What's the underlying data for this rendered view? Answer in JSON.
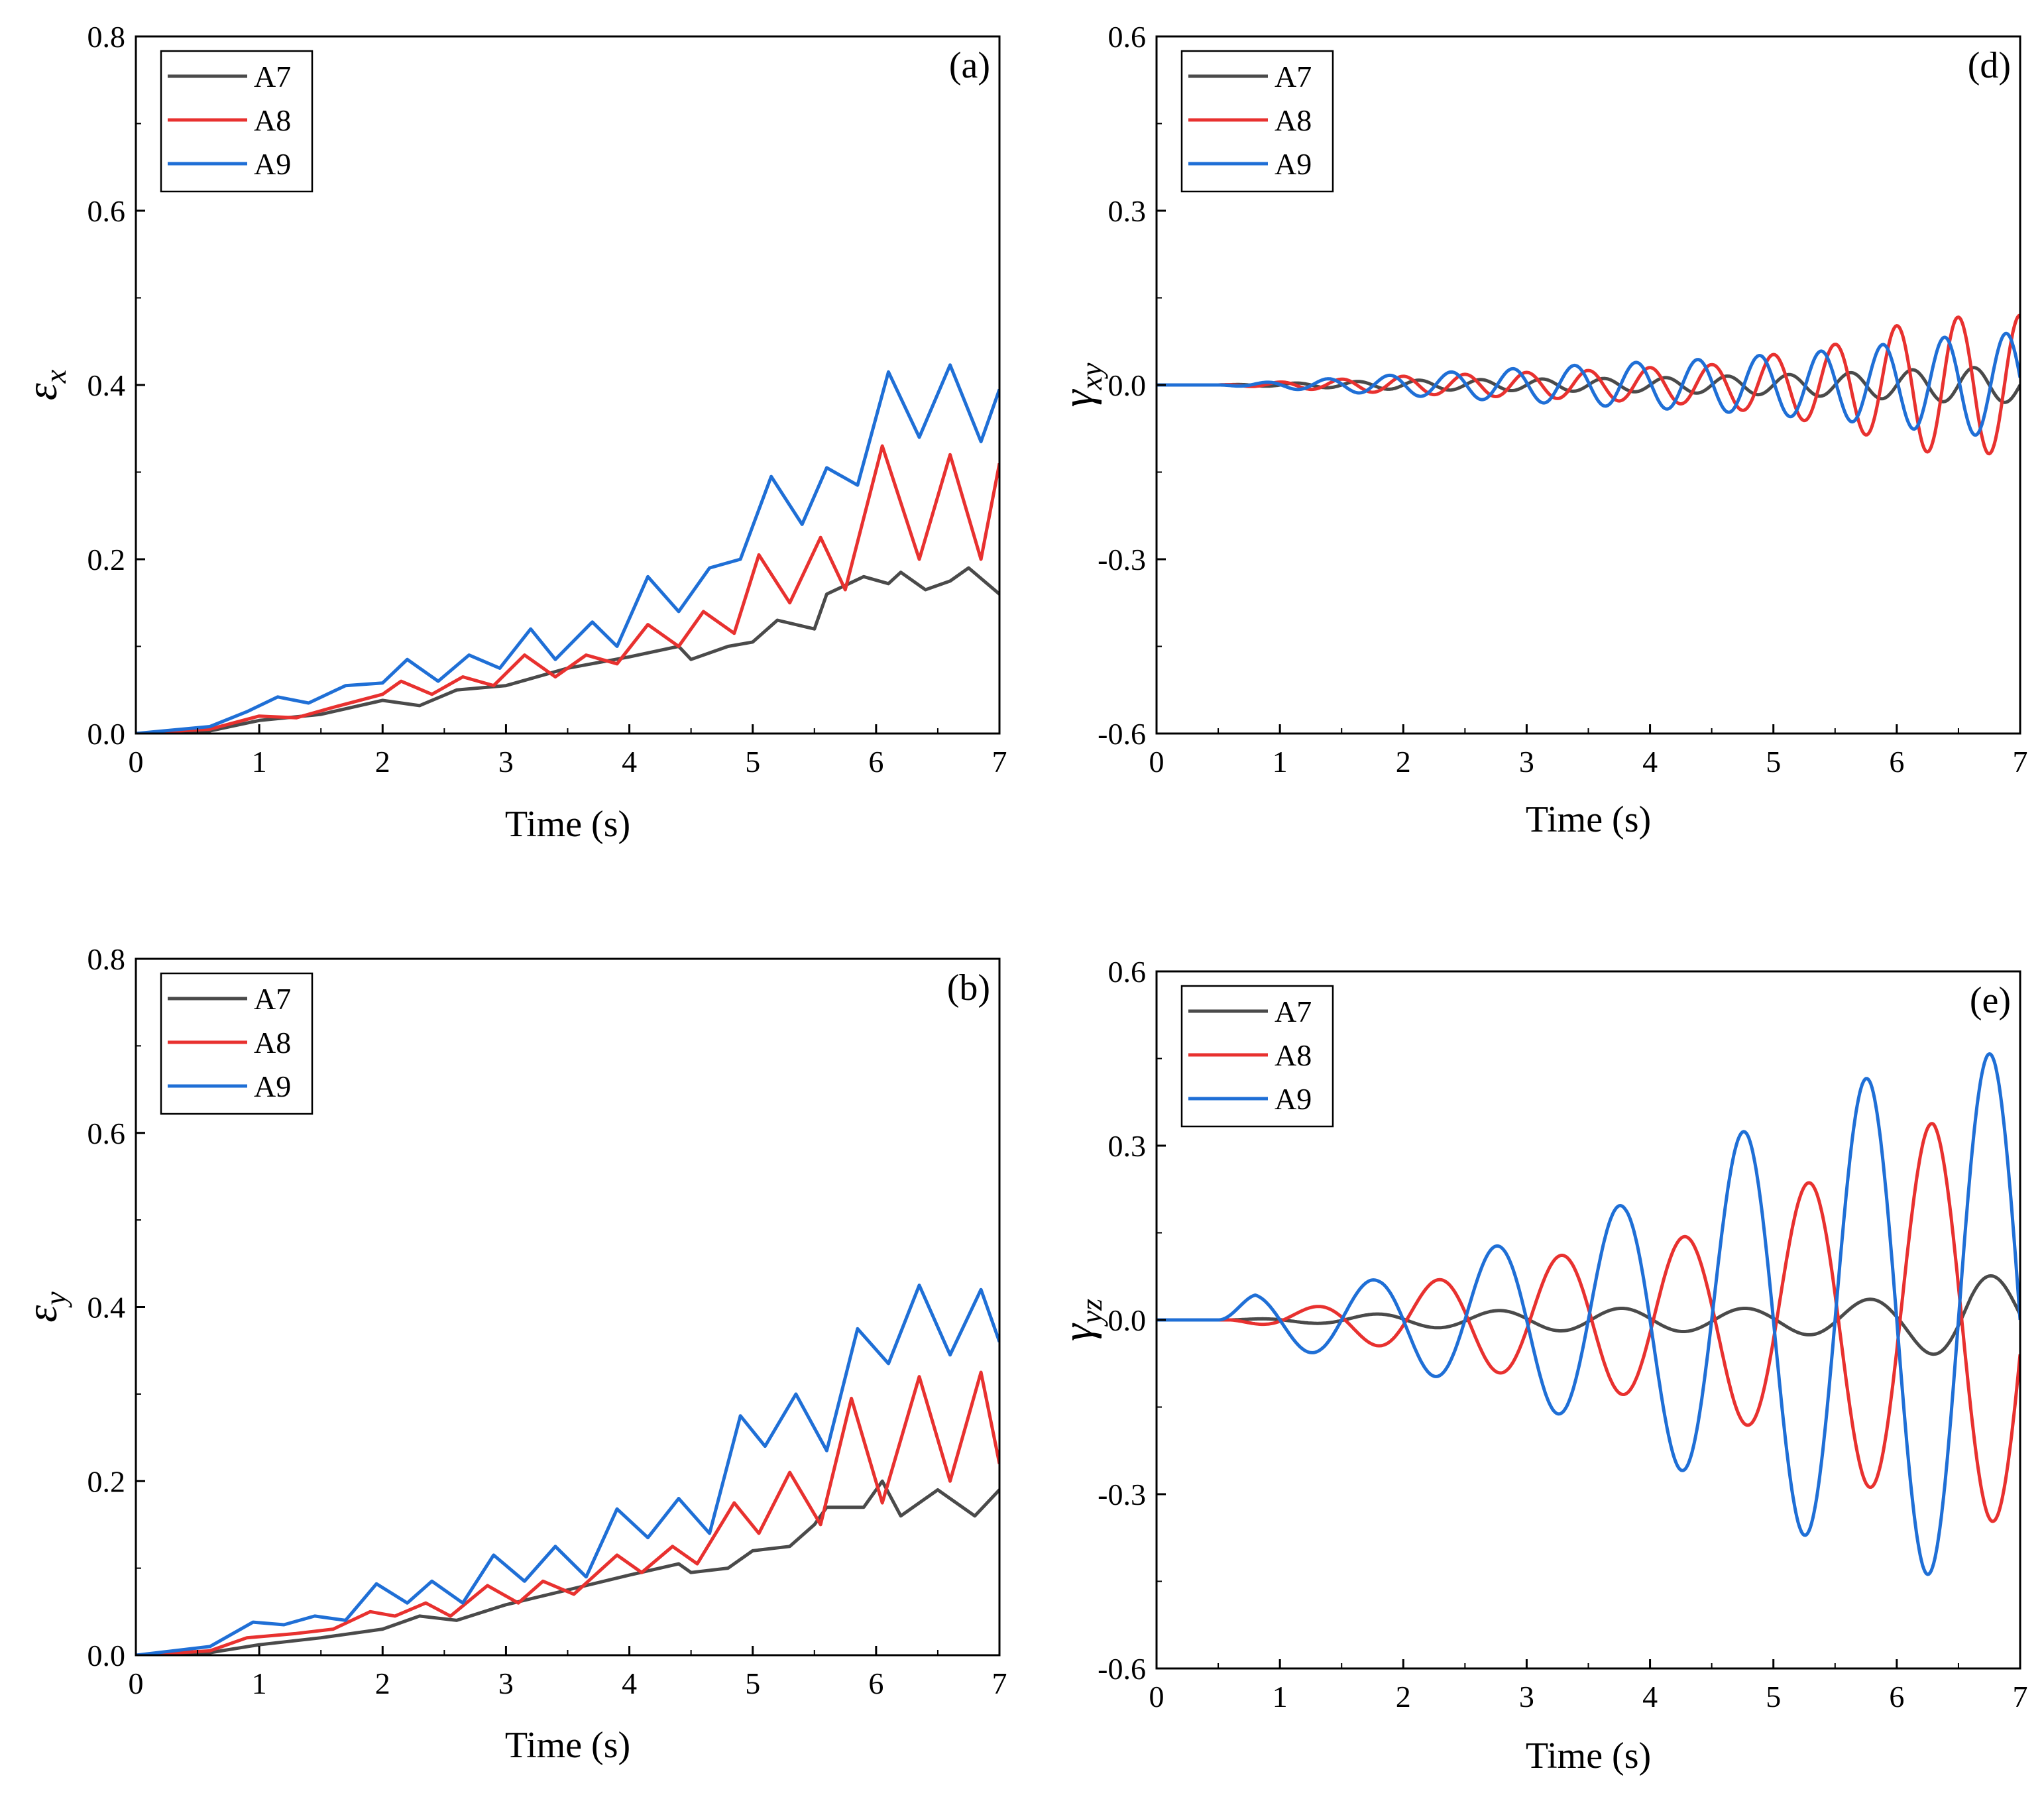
{
  "figure": {
    "colors": {
      "A7": "#4a4a4a",
      "A8": "#e8312f",
      "A9": "#1f6fd6"
    }
  },
  "chart_data": [
    {
      "id": "a",
      "panel_label": "(a)",
      "type": "line",
      "title": "",
      "xlabel": "Time (s)",
      "ylabel": {
        "symbol": "ε",
        "sub": "x"
      },
      "xlim": [
        0,
        7
      ],
      "ylim": [
        0,
        0.8
      ],
      "xticks": [
        "0",
        "1",
        "2",
        "3",
        "4",
        "5",
        "6",
        "7"
      ],
      "yticks": [
        "0.0",
        "0.2",
        "0.4",
        "0.6",
        "0.8"
      ],
      "grid": false,
      "legend": {
        "position": "top-left",
        "entries": [
          "A7",
          "A8",
          "A9"
        ]
      },
      "series": [
        {
          "name": "A7",
          "color": "#4a4a4a",
          "x": [
            0,
            0.6,
            1.0,
            1.5,
            2.0,
            2.3,
            2.6,
            3.0,
            3.5,
            4.0,
            4.4,
            4.5,
            4.8,
            5.0,
            5.2,
            5.5,
            5.6,
            5.9,
            6.1,
            6.2,
            6.4,
            6.6,
            6.75,
            7.0
          ],
          "y": [
            0,
            0.003,
            0.015,
            0.022,
            0.038,
            0.032,
            0.05,
            0.055,
            0.075,
            0.088,
            0.1,
            0.085,
            0.1,
            0.105,
            0.13,
            0.12,
            0.16,
            0.18,
            0.172,
            0.185,
            0.165,
            0.175,
            0.19,
            0.16
          ]
        },
        {
          "name": "A8",
          "color": "#e8312f",
          "x": [
            0,
            0.6,
            1.0,
            1.3,
            1.6,
            2.0,
            2.15,
            2.4,
            2.65,
            2.9,
            3.15,
            3.4,
            3.65,
            3.9,
            4.15,
            4.4,
            4.6,
            4.85,
            5.05,
            5.3,
            5.55,
            5.75,
            6.05,
            6.35,
            6.6,
            6.85,
            7.0
          ],
          "y": [
            0,
            0.005,
            0.02,
            0.018,
            0.03,
            0.045,
            0.06,
            0.045,
            0.065,
            0.055,
            0.09,
            0.065,
            0.09,
            0.08,
            0.125,
            0.1,
            0.14,
            0.115,
            0.205,
            0.15,
            0.225,
            0.165,
            0.33,
            0.2,
            0.32,
            0.2,
            0.31
          ]
        },
        {
          "name": "A9",
          "color": "#1f6fd6",
          "x": [
            0,
            0.6,
            0.9,
            1.15,
            1.4,
            1.7,
            2.0,
            2.2,
            2.45,
            2.7,
            2.95,
            3.2,
            3.4,
            3.7,
            3.9,
            4.15,
            4.4,
            4.65,
            4.9,
            5.15,
            5.4,
            5.6,
            5.85,
            6.1,
            6.35,
            6.6,
            6.85,
            7.0
          ],
          "y": [
            0,
            0.008,
            0.025,
            0.042,
            0.035,
            0.055,
            0.058,
            0.085,
            0.06,
            0.09,
            0.075,
            0.12,
            0.085,
            0.128,
            0.1,
            0.18,
            0.14,
            0.19,
            0.2,
            0.295,
            0.24,
            0.305,
            0.285,
            0.415,
            0.34,
            0.423,
            0.335,
            0.395
          ]
        }
      ]
    },
    {
      "id": "b",
      "panel_label": "(b)",
      "type": "line",
      "title": "",
      "xlabel": "Time (s)",
      "ylabel": {
        "symbol": "ε",
        "sub": "y"
      },
      "xlim": [
        0,
        7
      ],
      "ylim": [
        0,
        0.8
      ],
      "xticks": [
        "0",
        "1",
        "2",
        "3",
        "4",
        "5",
        "6",
        "7"
      ],
      "yticks": [
        "0.0",
        "0.2",
        "0.4",
        "0.6",
        "0.8"
      ],
      "grid": false,
      "legend": {
        "position": "top-left",
        "entries": [
          "A7",
          "A8",
          "A9"
        ]
      },
      "series": [
        {
          "name": "A7",
          "color": "#4a4a4a",
          "x": [
            0,
            0.6,
            1.0,
            1.5,
            2.0,
            2.3,
            2.6,
            3.0,
            3.5,
            4.0,
            4.4,
            4.5,
            4.8,
            5.0,
            5.3,
            5.5,
            5.6,
            5.9,
            6.05,
            6.2,
            6.5,
            6.8,
            7.0
          ],
          "y": [
            0,
            0.003,
            0.012,
            0.02,
            0.03,
            0.045,
            0.04,
            0.058,
            0.075,
            0.092,
            0.105,
            0.095,
            0.1,
            0.12,
            0.125,
            0.15,
            0.17,
            0.17,
            0.2,
            0.16,
            0.19,
            0.16,
            0.19
          ]
        },
        {
          "name": "A8",
          "color": "#e8312f",
          "x": [
            0,
            0.6,
            0.9,
            1.3,
            1.6,
            1.9,
            2.1,
            2.35,
            2.55,
            2.85,
            3.1,
            3.3,
            3.55,
            3.9,
            4.1,
            4.35,
            4.55,
            4.85,
            5.05,
            5.3,
            5.55,
            5.8,
            6.05,
            6.35,
            6.6,
            6.85,
            7.0
          ],
          "y": [
            0,
            0.005,
            0.02,
            0.025,
            0.03,
            0.05,
            0.045,
            0.06,
            0.045,
            0.08,
            0.06,
            0.085,
            0.07,
            0.115,
            0.095,
            0.125,
            0.105,
            0.175,
            0.14,
            0.21,
            0.15,
            0.295,
            0.175,
            0.32,
            0.2,
            0.325,
            0.22
          ]
        },
        {
          "name": "A9",
          "color": "#1f6fd6",
          "x": [
            0,
            0.6,
            0.95,
            1.2,
            1.45,
            1.7,
            1.95,
            2.2,
            2.4,
            2.65,
            2.9,
            3.15,
            3.4,
            3.65,
            3.9,
            4.15,
            4.4,
            4.65,
            4.9,
            5.1,
            5.35,
            5.6,
            5.85,
            6.1,
            6.35,
            6.6,
            6.85,
            7.0
          ],
          "y": [
            0,
            0.01,
            0.038,
            0.035,
            0.045,
            0.04,
            0.082,
            0.06,
            0.085,
            0.06,
            0.115,
            0.085,
            0.125,
            0.09,
            0.168,
            0.135,
            0.18,
            0.14,
            0.275,
            0.24,
            0.3,
            0.235,
            0.375,
            0.335,
            0.425,
            0.345,
            0.42,
            0.36
          ]
        }
      ]
    },
    {
      "id": "d",
      "panel_label": "(d)",
      "type": "line",
      "title": "",
      "xlabel": "Time (s)",
      "ylabel": {
        "symbol": "γ",
        "sub": "xy"
      },
      "xlim": [
        0,
        7
      ],
      "ylim": [
        -0.6,
        0.6
      ],
      "xticks": [
        "0",
        "1",
        "2",
        "3",
        "4",
        "5",
        "6",
        "7"
      ],
      "yticks": [
        "-0.6",
        "-0.3",
        "0.0",
        "0.3",
        "0.6"
      ],
      "grid": false,
      "legend": {
        "position": "top-left",
        "entries": [
          "A7",
          "A8",
          "A9"
        ]
      },
      "series": [
        {
          "name": "A7",
          "color": "#4a4a4a",
          "osc": {
            "start": 0.5,
            "period": 0.5,
            "phase": 0.0,
            "amps": [
              [
                0.5,
                0.0
              ],
              [
                2.0,
                0.008
              ],
              [
                4.0,
                0.012
              ],
              [
                5.5,
                0.02
              ],
              [
                6.5,
                0.03
              ],
              [
                7.0,
                0.03
              ]
            ]
          }
        },
        {
          "name": "A8",
          "color": "#e8312f",
          "osc": {
            "start": 0.5,
            "period": 0.5,
            "phase": 1.6,
            "amps": [
              [
                0.5,
                0.0
              ],
              [
                2.0,
                0.015
              ],
              [
                3.5,
                0.025
              ],
              [
                4.5,
                0.035
              ],
              [
                5.5,
                0.07
              ],
              [
                6.2,
                0.115
              ],
              [
                7.0,
                0.12
              ]
            ]
          }
        },
        {
          "name": "A9",
          "color": "#1f6fd6",
          "osc": {
            "start": 0.5,
            "period": 0.5,
            "phase": 3.0,
            "amps": [
              [
                0.5,
                0.0
              ],
              [
                2.0,
                0.018
              ],
              [
                3.5,
                0.035
              ],
              [
                4.5,
                0.045
              ],
              [
                5.5,
                0.06
              ],
              [
                6.5,
                0.085
              ],
              [
                7.0,
                0.09
              ]
            ]
          }
        }
      ]
    },
    {
      "id": "e",
      "panel_label": "(e)",
      "type": "line",
      "title": "",
      "xlabel": "Time (s)",
      "ylabel": {
        "symbol": "γ",
        "sub": "yz"
      },
      "xlim": [
        0,
        7
      ],
      "ylim": [
        -0.6,
        0.6
      ],
      "xticks": [
        "0",
        "1",
        "2",
        "3",
        "4",
        "5",
        "6",
        "7"
      ],
      "yticks": [
        "-0.6",
        "-0.3",
        "0.0",
        "0.3",
        "0.6"
      ],
      "grid": false,
      "legend": {
        "position": "top-left",
        "entries": [
          "A7",
          "A8",
          "A9"
        ]
      },
      "series": [
        {
          "name": "A7",
          "color": "#4a4a4a",
          "osc": {
            "start": 0.6,
            "period": 1.0,
            "phase": 0.5,
            "amps": [
              [
                0.6,
                0.0
              ],
              [
                2.0,
                0.012
              ],
              [
                3.5,
                0.02
              ],
              [
                5.0,
                0.02
              ],
              [
                6.0,
                0.04
              ],
              [
                6.6,
                0.08
              ],
              [
                7.0,
                0.07
              ]
            ]
          }
        },
        {
          "name": "A8",
          "color": "#e8312f",
          "osc": {
            "start": 0.6,
            "period": 1.0,
            "phase": 3.6,
            "amps": [
              [
                0.6,
                0.0
              ],
              [
                1.5,
                0.03
              ],
              [
                2.5,
                0.08
              ],
              [
                3.5,
                0.12
              ],
              [
                4.5,
                0.15
              ],
              [
                5.5,
                0.26
              ],
              [
                6.3,
                0.34
              ],
              [
                7.0,
                0.35
              ]
            ]
          }
        },
        {
          "name": "A9",
          "color": "#1f6fd6",
          "osc": {
            "start": 0.5,
            "period": 1.0,
            "phase": 0.0,
            "amps": [
              [
                0.5,
                0.0
              ],
              [
                0.8,
                0.045
              ],
              [
                1.8,
                0.07
              ],
              [
                2.8,
                0.13
              ],
              [
                3.8,
                0.2
              ],
              [
                4.8,
                0.33
              ],
              [
                5.8,
                0.42
              ],
              [
                6.8,
                0.46
              ],
              [
                7.0,
                0.46
              ]
            ]
          }
        }
      ]
    }
  ]
}
